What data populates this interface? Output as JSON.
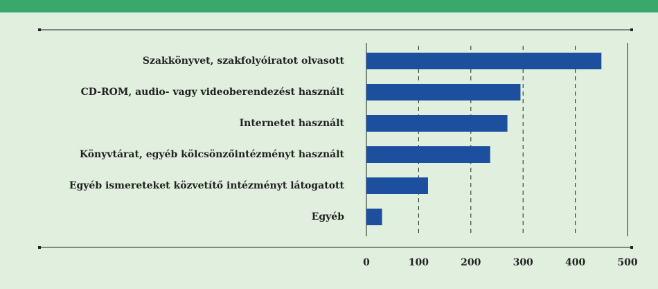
{
  "chart_data": {
    "type": "hbar",
    "categories": [
      "Szakkönyvet, szakfolyóiratot olvasott",
      "CD-ROM, audio- vagy videoberendezést használt",
      "Internetet használt",
      "Könyvtárat, egyéb kölcsönzőintézményt használt",
      "Egyéb ismereteket közvetítő intézményt látogatott",
      "Egyéb"
    ],
    "values": [
      450,
      295,
      270,
      237,
      118,
      30
    ],
    "color": "#1c4f9e",
    "xlim": [
      0,
      500
    ],
    "xticks": [
      0,
      100,
      200,
      300,
      400,
      500
    ],
    "grid": true
  }
}
